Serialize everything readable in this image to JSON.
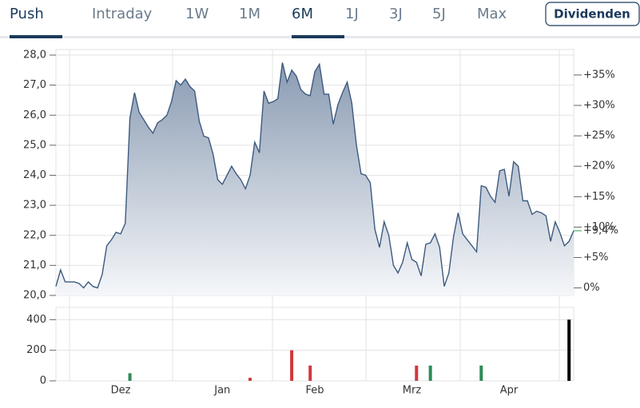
{
  "tabs": [
    "Push",
    "Intraday",
    "1W",
    "1M",
    "6M",
    "1J",
    "3J",
    "5J",
    "Max"
  ],
  "button": "Dividenden",
  "chart_data": [
    {
      "type": "area",
      "categories": [
        null,
        null,
        null,
        null,
        null,
        null,
        null,
        null,
        null,
        null,
        null,
        null,
        null,
        null,
        "Dez",
        null,
        null,
        null,
        null,
        null,
        null,
        null,
        null,
        null,
        null,
        null,
        null,
        null,
        null,
        null,
        null,
        null,
        null,
        null,
        null,
        null,
        "Jan",
        null,
        null,
        null,
        null,
        null,
        null,
        null,
        null,
        null,
        null,
        null,
        null,
        null,
        null,
        null,
        null,
        null,
        null,
        null,
        "Feb",
        null,
        null,
        null,
        null,
        null,
        null,
        null,
        null,
        null,
        null,
        null,
        null,
        null,
        null,
        null,
        null,
        null,
        null,
        null,
        null,
        "Mrz",
        null,
        null,
        null,
        null,
        null,
        null,
        null,
        null,
        null,
        null,
        null,
        null,
        null,
        null,
        null,
        null,
        null,
        null,
        null,
        null,
        "Apr",
        null,
        null,
        null,
        null,
        null,
        null,
        null,
        null,
        null,
        null,
        null,
        null,
        null,
        null
      ],
      "values": [
        20.3,
        20.85,
        20.45,
        20.45,
        20.45,
        20.4,
        20.25,
        20.45,
        20.3,
        20.25,
        20.7,
        21.65,
        21.85,
        22.1,
        22.05,
        22.4,
        25.9,
        26.75,
        26.1,
        25.85,
        25.6,
        25.4,
        25.75,
        25.85,
        26.0,
        26.45,
        27.15,
        27.0,
        27.2,
        26.95,
        26.8,
        25.8,
        25.3,
        25.25,
        24.7,
        23.85,
        23.7,
        24.0,
        24.3,
        24.05,
        23.85,
        23.55,
        24.0,
        25.1,
        24.75,
        26.8,
        26.4,
        26.45,
        26.55,
        27.75,
        27.1,
        27.5,
        27.3,
        26.85,
        26.7,
        26.65,
        27.45,
        27.7,
        26.7,
        26.7,
        25.7,
        26.35,
        26.75,
        27.1,
        26.4,
        25.0,
        24.05,
        24.0,
        23.75,
        22.2,
        21.6,
        22.45,
        22.0,
        21.0,
        20.75,
        21.1,
        21.75,
        21.2,
        21.1,
        20.65,
        21.7,
        21.75,
        22.05,
        21.6,
        20.3,
        20.75,
        21.95,
        22.75,
        22.05,
        21.85,
        21.65,
        21.45,
        23.65,
        23.6,
        23.3,
        23.1,
        24.15,
        24.2,
        23.3,
        24.45,
        24.3,
        23.15,
        23.15,
        22.7,
        22.8,
        22.75,
        22.65,
        21.8,
        22.45,
        22.1,
        21.65,
        21.8,
        22.15
      ],
      "color": "#3d5a80",
      "ylim": [
        20,
        28
      ],
      "yticks": [
        {
          "value": 20,
          "label": "20,0"
        },
        {
          "value": 21,
          "label": "21,0"
        },
        {
          "value": 22,
          "label": "22,0"
        },
        {
          "value": 23,
          "label": "23,0"
        },
        {
          "value": 24,
          "label": "24,0"
        },
        {
          "value": 25,
          "label": "25,0"
        },
        {
          "value": 26,
          "label": "26,0"
        },
        {
          "value": 27,
          "label": "27,0"
        },
        {
          "value": 28,
          "label": "28,0"
        }
      ],
      "y2lim": [
        -1.23,
        38.27
      ],
      "y2ticks": [
        {
          "value": 0,
          "label": "0%"
        },
        {
          "value": 5,
          "label": "+5%"
        },
        {
          "value": 10,
          "label": "+10%"
        },
        {
          "value": 15,
          "label": "+15%"
        },
        {
          "value": 20,
          "label": "+20%"
        },
        {
          "value": 25,
          "label": "+25%"
        },
        {
          "value": 30,
          "label": "+30%"
        },
        {
          "value": 35,
          "label": "+35%"
        }
      ],
      "current": {
        "value": 9.4,
        "label": "+9,4%",
        "color": "#2e9e5b"
      },
      "grid": true
    },
    {
      "type": "bar",
      "values": [
        null,
        null,
        null,
        null,
        null,
        null,
        null,
        null,
        null,
        null,
        null,
        null,
        null,
        null,
        null,
        null,
        50,
        null,
        null,
        null,
        null,
        null,
        null,
        null,
        null,
        null,
        null,
        null,
        null,
        null,
        null,
        null,
        null,
        null,
        null,
        null,
        null,
        null,
        null,
        null,
        null,
        null,
        20,
        null,
        null,
        null,
        null,
        null,
        null,
        null,
        null,
        200,
        null,
        null,
        null,
        100,
        null,
        null,
        null,
        null,
        null,
        null,
        null,
        null,
        null,
        null,
        null,
        null,
        null,
        null,
        null,
        null,
        null,
        null,
        null,
        null,
        null,
        null,
        100,
        null,
        null,
        100,
        null,
        null,
        null,
        null,
        null,
        null,
        null,
        null,
        null,
        null,
        100,
        null,
        null,
        null,
        null,
        null,
        null,
        null,
        null,
        null,
        null,
        null,
        null,
        null,
        null,
        null,
        null,
        null,
        null,
        400,
        null
      ],
      "colors": [
        null,
        null,
        null,
        null,
        null,
        null,
        null,
        null,
        null,
        null,
        null,
        null,
        null,
        null,
        null,
        null,
        "#2e8b57",
        null,
        null,
        null,
        null,
        null,
        null,
        null,
        null,
        null,
        null,
        null,
        null,
        null,
        null,
        null,
        null,
        null,
        null,
        null,
        null,
        null,
        null,
        null,
        null,
        null,
        "#d0393e",
        null,
        null,
        null,
        null,
        null,
        null,
        null,
        null,
        "#d0393e",
        null,
        null,
        null,
        "#d0393e",
        null,
        null,
        null,
        null,
        null,
        null,
        null,
        null,
        null,
        null,
        null,
        null,
        null,
        null,
        null,
        null,
        null,
        null,
        null,
        null,
        null,
        null,
        "#d0393e",
        null,
        null,
        "#2e8b57",
        null,
        null,
        null,
        null,
        null,
        null,
        null,
        null,
        null,
        null,
        "#2e8b57",
        null,
        null,
        null,
        null,
        null,
        null,
        null,
        null,
        null,
        null,
        null,
        null,
        null,
        null,
        null,
        null,
        null,
        null,
        null,
        null,
        "#d0393e",
        null
      ],
      "ylim": [
        0,
        480
      ],
      "yticks": [
        0,
        200,
        400
      ],
      "grid": true
    }
  ]
}
